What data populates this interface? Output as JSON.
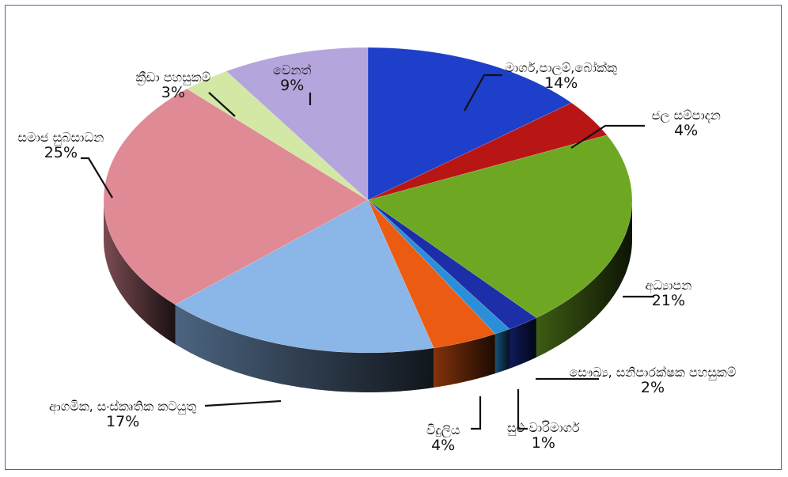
{
  "chart_data": {
    "type": "pie",
    "title": "",
    "style": "3d-exploded-perspective",
    "slices": [
      {
        "label": "මාර්ග,පාලම්,බෝක්කු",
        "value": 14,
        "display": "14%",
        "color": "#1e3fc9"
      },
      {
        "label": "ජල සම්පාදන",
        "value": 4,
        "display": "4%",
        "color": "#b81515"
      },
      {
        "label": "අධ්‍යාපන",
        "value": 21,
        "display": "21%",
        "color": "#6ea822"
      },
      {
        "label": "සෞඛ්‍ය, සනිපාරක්ෂක පහසුකම්",
        "value": 2,
        "display": "2%",
        "color": "#1c2fa8"
      },
      {
        "label": "සුළු වාරිමාර්ග",
        "value": 1,
        "display": "1%",
        "color": "#2a8fd8"
      },
      {
        "label": "විදුලිය",
        "value": 4,
        "display": "4%",
        "color": "#ec5b12"
      },
      {
        "label": "ආගමික, සංස්කෘතික කටයුතු",
        "value": 17,
        "display": "17%",
        "color": "#8ab6e8"
      },
      {
        "label": "සමාජ සුබසාධන",
        "value": 25,
        "display": "25%",
        "color": "#e08a96"
      },
      {
        "label": "ක්‍රීඩා පහසුකම්",
        "value": 3,
        "display": "3%",
        "color": "#d2e8a4"
      },
      {
        "label": "වෙනත්",
        "value": 9,
        "display": "9%",
        "color": "#b4a6dc"
      }
    ],
    "legend": "none",
    "data_labels": "outside-with-leader-lines"
  }
}
